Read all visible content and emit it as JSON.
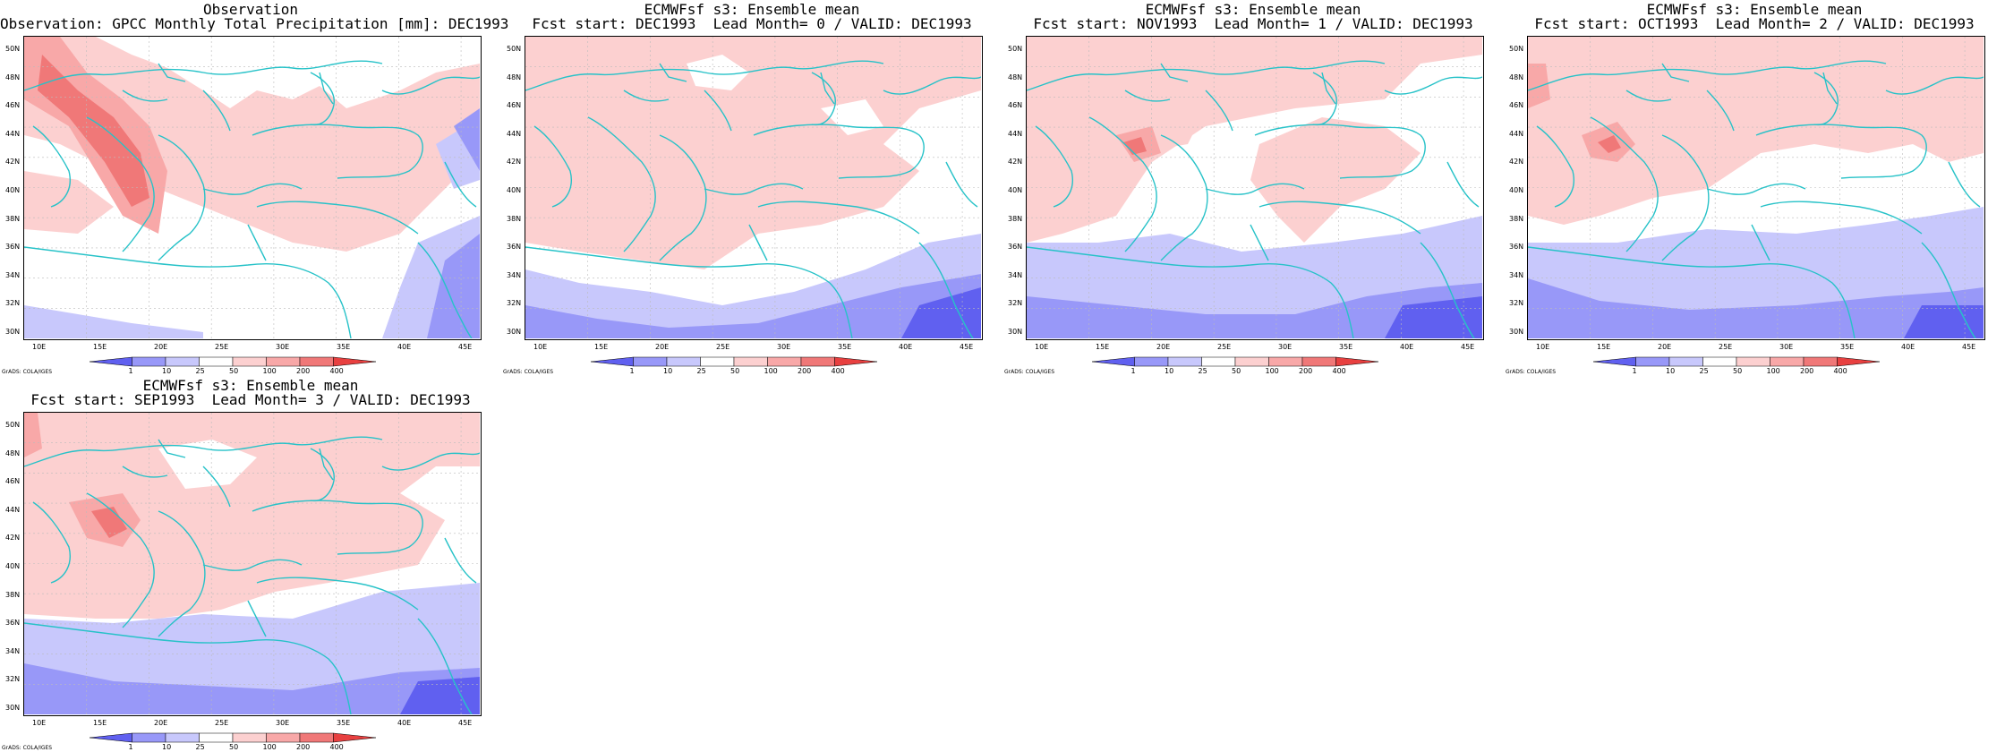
{
  "colors": {
    "coast": "#27c2c8",
    "grid": "#bbbbbb",
    "colorbar": [
      "#6060f0",
      "#9898f8",
      "#c8c8fc",
      "#ffffff",
      "#fcd0d0",
      "#f8a8a8",
      "#f07878",
      "#e84040"
    ]
  },
  "lat_labels": [
    "50N",
    "48N",
    "46N",
    "44N",
    "42N",
    "40N",
    "38N",
    "36N",
    "34N",
    "32N",
    "30N"
  ],
  "lon_labels": [
    "10E",
    "15E",
    "20E",
    "25E",
    "30E",
    "35E",
    "40E",
    "45E"
  ],
  "colorbar_labels": [
    "1",
    "10",
    "25",
    "50",
    "100",
    "200",
    "400"
  ],
  "credit": "GrADS: COLA/IGES",
  "panels": [
    {
      "line1": "Observation",
      "line2": "Observation: GPCC Monthly Total Precipitation [mm]: DEC1993",
      "variant": 0
    },
    {
      "line1": "ECMWFsf s3: Ensemble mean",
      "line2": "Fcst start: DEC1993  Lead Month= 0 / VALID: DEC1993",
      "variant": 1
    },
    {
      "line1": "ECMWFsf s3: Ensemble mean",
      "line2": "Fcst start: NOV1993  Lead Month= 1 / VALID: DEC1993",
      "variant": 2
    },
    {
      "line1": "ECMWFsf s3: Ensemble mean",
      "line2": "Fcst start: OCT1993  Lead Month= 2 / VALID: DEC1993",
      "variant": 3
    },
    {
      "line1": "ECMWFsf s3: Ensemble mean",
      "line2": "Fcst start: SEP1993  Lead Month= 3 / VALID: DEC1993",
      "variant": 4
    }
  ]
}
